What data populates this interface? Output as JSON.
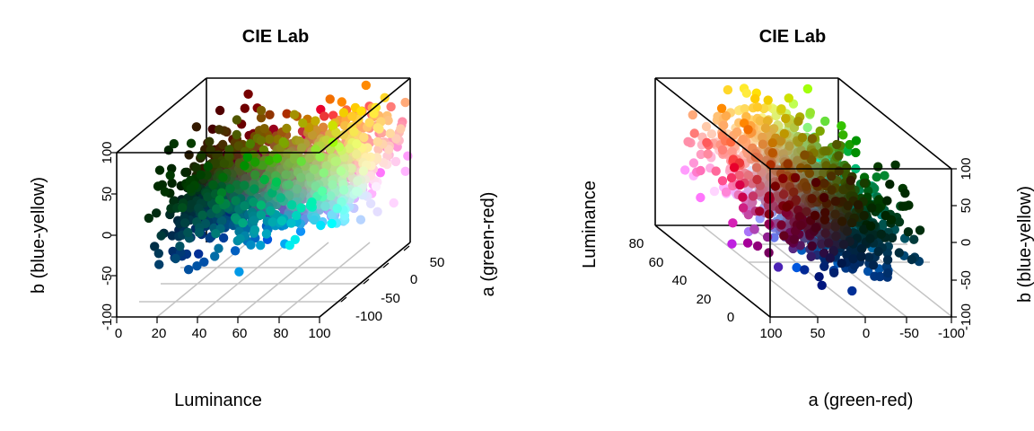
{
  "chart_data": [
    {
      "type": "scatter",
      "title": "CIE Lab",
      "xlabel": "Luminance",
      "ylabel": "a (green-red)",
      "zlabel": "b (blue-yellow)",
      "xlim": [
        0,
        100
      ],
      "ylim": [
        -100,
        50
      ],
      "zlim": [
        -100,
        100
      ],
      "x_ticks": [
        "0",
        "20",
        "40",
        "60",
        "80",
        "100"
      ],
      "y_ticks": [
        "-100",
        "-50",
        "0",
        "50"
      ],
      "z_ticks": [
        "-100",
        "-50",
        "0",
        "50",
        "100"
      ],
      "view": "3d-box",
      "grid": true
    },
    {
      "type": "scatter",
      "title": "CIE Lab",
      "xlabel": "a (green-red)",
      "ylabel": "Luminance",
      "zlabel": "b (blue-yellow)",
      "xlim": [
        -100,
        100
      ],
      "ylim": [
        0,
        80
      ],
      "zlim": [
        -100,
        100
      ],
      "x_ticks": [
        "100",
        "50",
        "0",
        "-50",
        "-100"
      ],
      "y_ticks": [
        "0",
        "20",
        "40",
        "60",
        "80"
      ],
      "z_ticks": [
        "-100",
        "-50",
        "0",
        "50",
        "100"
      ],
      "view": "3d-box",
      "grid": true
    }
  ]
}
